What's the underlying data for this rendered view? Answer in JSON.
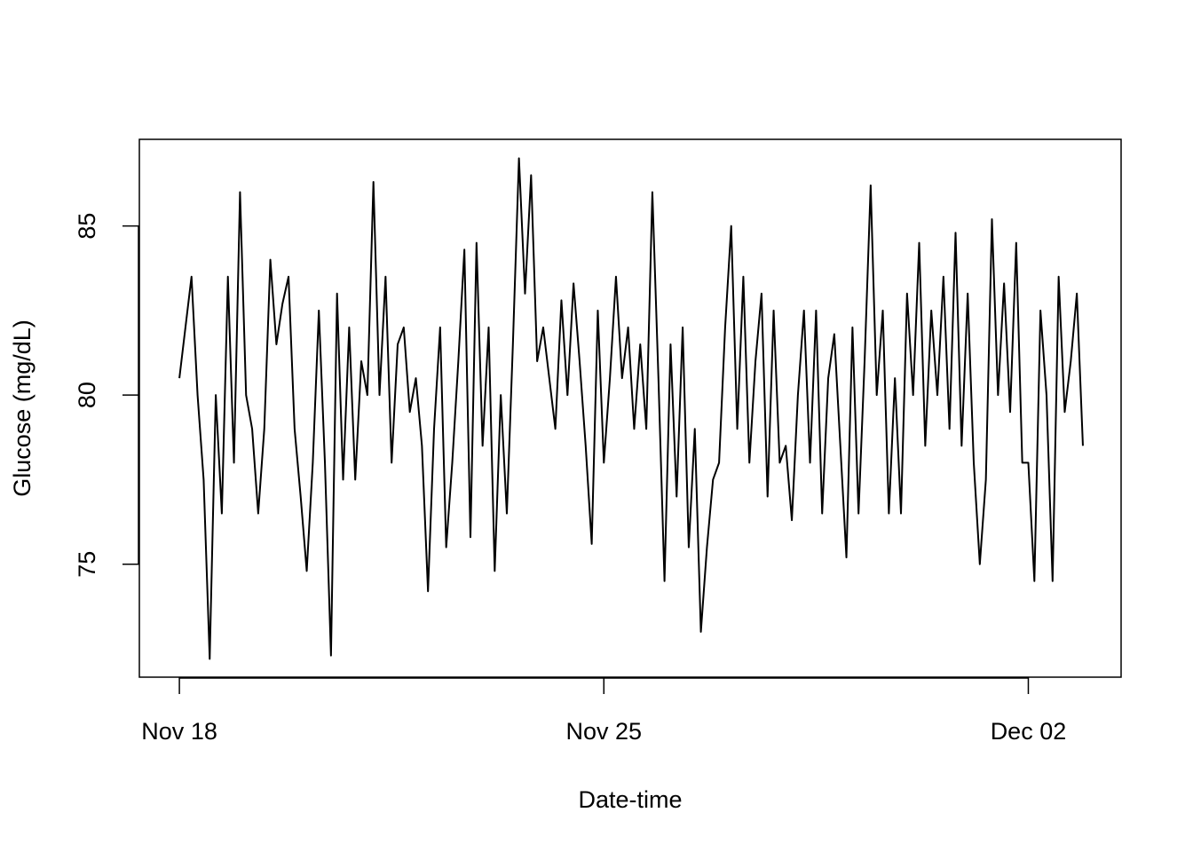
{
  "chart_data": {
    "type": "line",
    "x_label": "Date-time",
    "y_label": "Glucose (mg/dL)",
    "color": "#000000",
    "x": [
      0,
      0.1,
      0.2,
      0.3,
      0.4,
      0.5,
      0.6,
      0.7,
      0.8,
      0.9,
      1,
      1.1,
      1.2,
      1.3,
      1.4,
      1.5,
      1.6,
      1.7,
      1.8,
      1.9,
      2,
      2.1,
      2.2,
      2.3,
      2.4,
      2.5,
      2.6,
      2.7,
      2.8,
      2.9,
      3,
      3.1,
      3.2,
      3.3,
      3.4,
      3.5,
      3.6,
      3.7,
      3.8,
      3.9,
      4,
      4.1,
      4.2,
      4.3,
      4.4,
      4.5,
      4.6,
      4.7,
      4.8,
      4.9,
      5,
      5.1,
      5.2,
      5.3,
      5.4,
      5.5,
      5.6,
      5.7,
      5.8,
      5.9,
      6,
      6.1,
      6.2,
      6.3,
      6.4,
      6.5,
      6.6,
      6.7,
      6.8,
      6.9,
      7,
      7.1,
      7.2,
      7.3,
      7.4,
      7.5,
      7.6,
      7.7,
      7.8,
      7.9,
      8,
      8.1,
      8.2,
      8.3,
      8.4,
      8.5,
      8.6,
      8.7,
      8.8,
      8.9,
      9,
      9.1,
      9.2,
      9.3,
      9.4,
      9.5,
      9.6,
      9.7,
      9.8,
      9.9,
      10,
      10.1,
      10.2,
      10.3,
      10.4,
      10.5,
      10.6,
      10.7,
      10.8,
      10.9,
      11,
      11.1,
      11.2,
      11.3,
      11.4,
      11.5,
      11.6,
      11.7,
      11.8,
      11.9,
      12,
      12.1,
      12.2,
      12.3,
      12.4,
      12.5,
      12.6,
      12.7,
      12.8,
      12.9,
      13,
      13.1,
      13.2,
      13.3,
      13.4,
      13.5,
      13.6,
      13.7,
      13.8,
      13.9,
      14,
      14.1,
      14.2,
      14.3,
      14.4,
      14.5,
      14.6,
      14.7,
      14.8,
      14.9
    ],
    "values": [
      80.5,
      82,
      83.5,
      80,
      77.5,
      72.2,
      80,
      76.5,
      83.5,
      78,
      86,
      80,
      79,
      76.5,
      79,
      84,
      81.5,
      82.7,
      83.5,
      79,
      77,
      74.8,
      78,
      82.5,
      78,
      72.3,
      83,
      77.5,
      82,
      77.5,
      81,
      80,
      86.3,
      80,
      83.5,
      78,
      81.5,
      82,
      79.5,
      80.5,
      78.5,
      74.2,
      79,
      82,
      75.5,
      78,
      81,
      84.3,
      75.8,
      84.5,
      78.5,
      82,
      74.8,
      80,
      76.5,
      81.5,
      87,
      83,
      86.5,
      81,
      82,
      80.5,
      79,
      82.8,
      80,
      83.3,
      81,
      78.5,
      75.6,
      82.5,
      78,
      80.5,
      83.5,
      80.5,
      82,
      79,
      81.5,
      79,
      86,
      80.5,
      74.5,
      81.5,
      77,
      82,
      75.5,
      79,
      73,
      75.5,
      77.5,
      78,
      82,
      85,
      79,
      83.5,
      78,
      81,
      83,
      77,
      82.5,
      78,
      78.5,
      76.3,
      80,
      82.5,
      78,
      82.5,
      76.5,
      80.5,
      81.8,
      78.5,
      75.2,
      82,
      76.5,
      81,
      86.2,
      80,
      82.5,
      76.5,
      80.5,
      76.5,
      83,
      80,
      84.5,
      78.5,
      82.5,
      80,
      83.5,
      79,
      84.8,
      78.5,
      83,
      78,
      75,
      77.5,
      85.2,
      80,
      83.3,
      79.5,
      84.5,
      78,
      78,
      74.5,
      82.5,
      80,
      74.5,
      83.5,
      79.5,
      81,
      83,
      78.5
    ],
    "xlim": [
      -0.66,
      15.53
    ],
    "xticks": [
      {
        "value": 0,
        "label": "Nov 18"
      },
      {
        "value": 7,
        "label": "Nov 25"
      },
      {
        "value": 14,
        "label": "Dec 02"
      }
    ],
    "ylim": [
      71.66,
      87.56
    ],
    "yticks": [
      75,
      80,
      85
    ]
  }
}
